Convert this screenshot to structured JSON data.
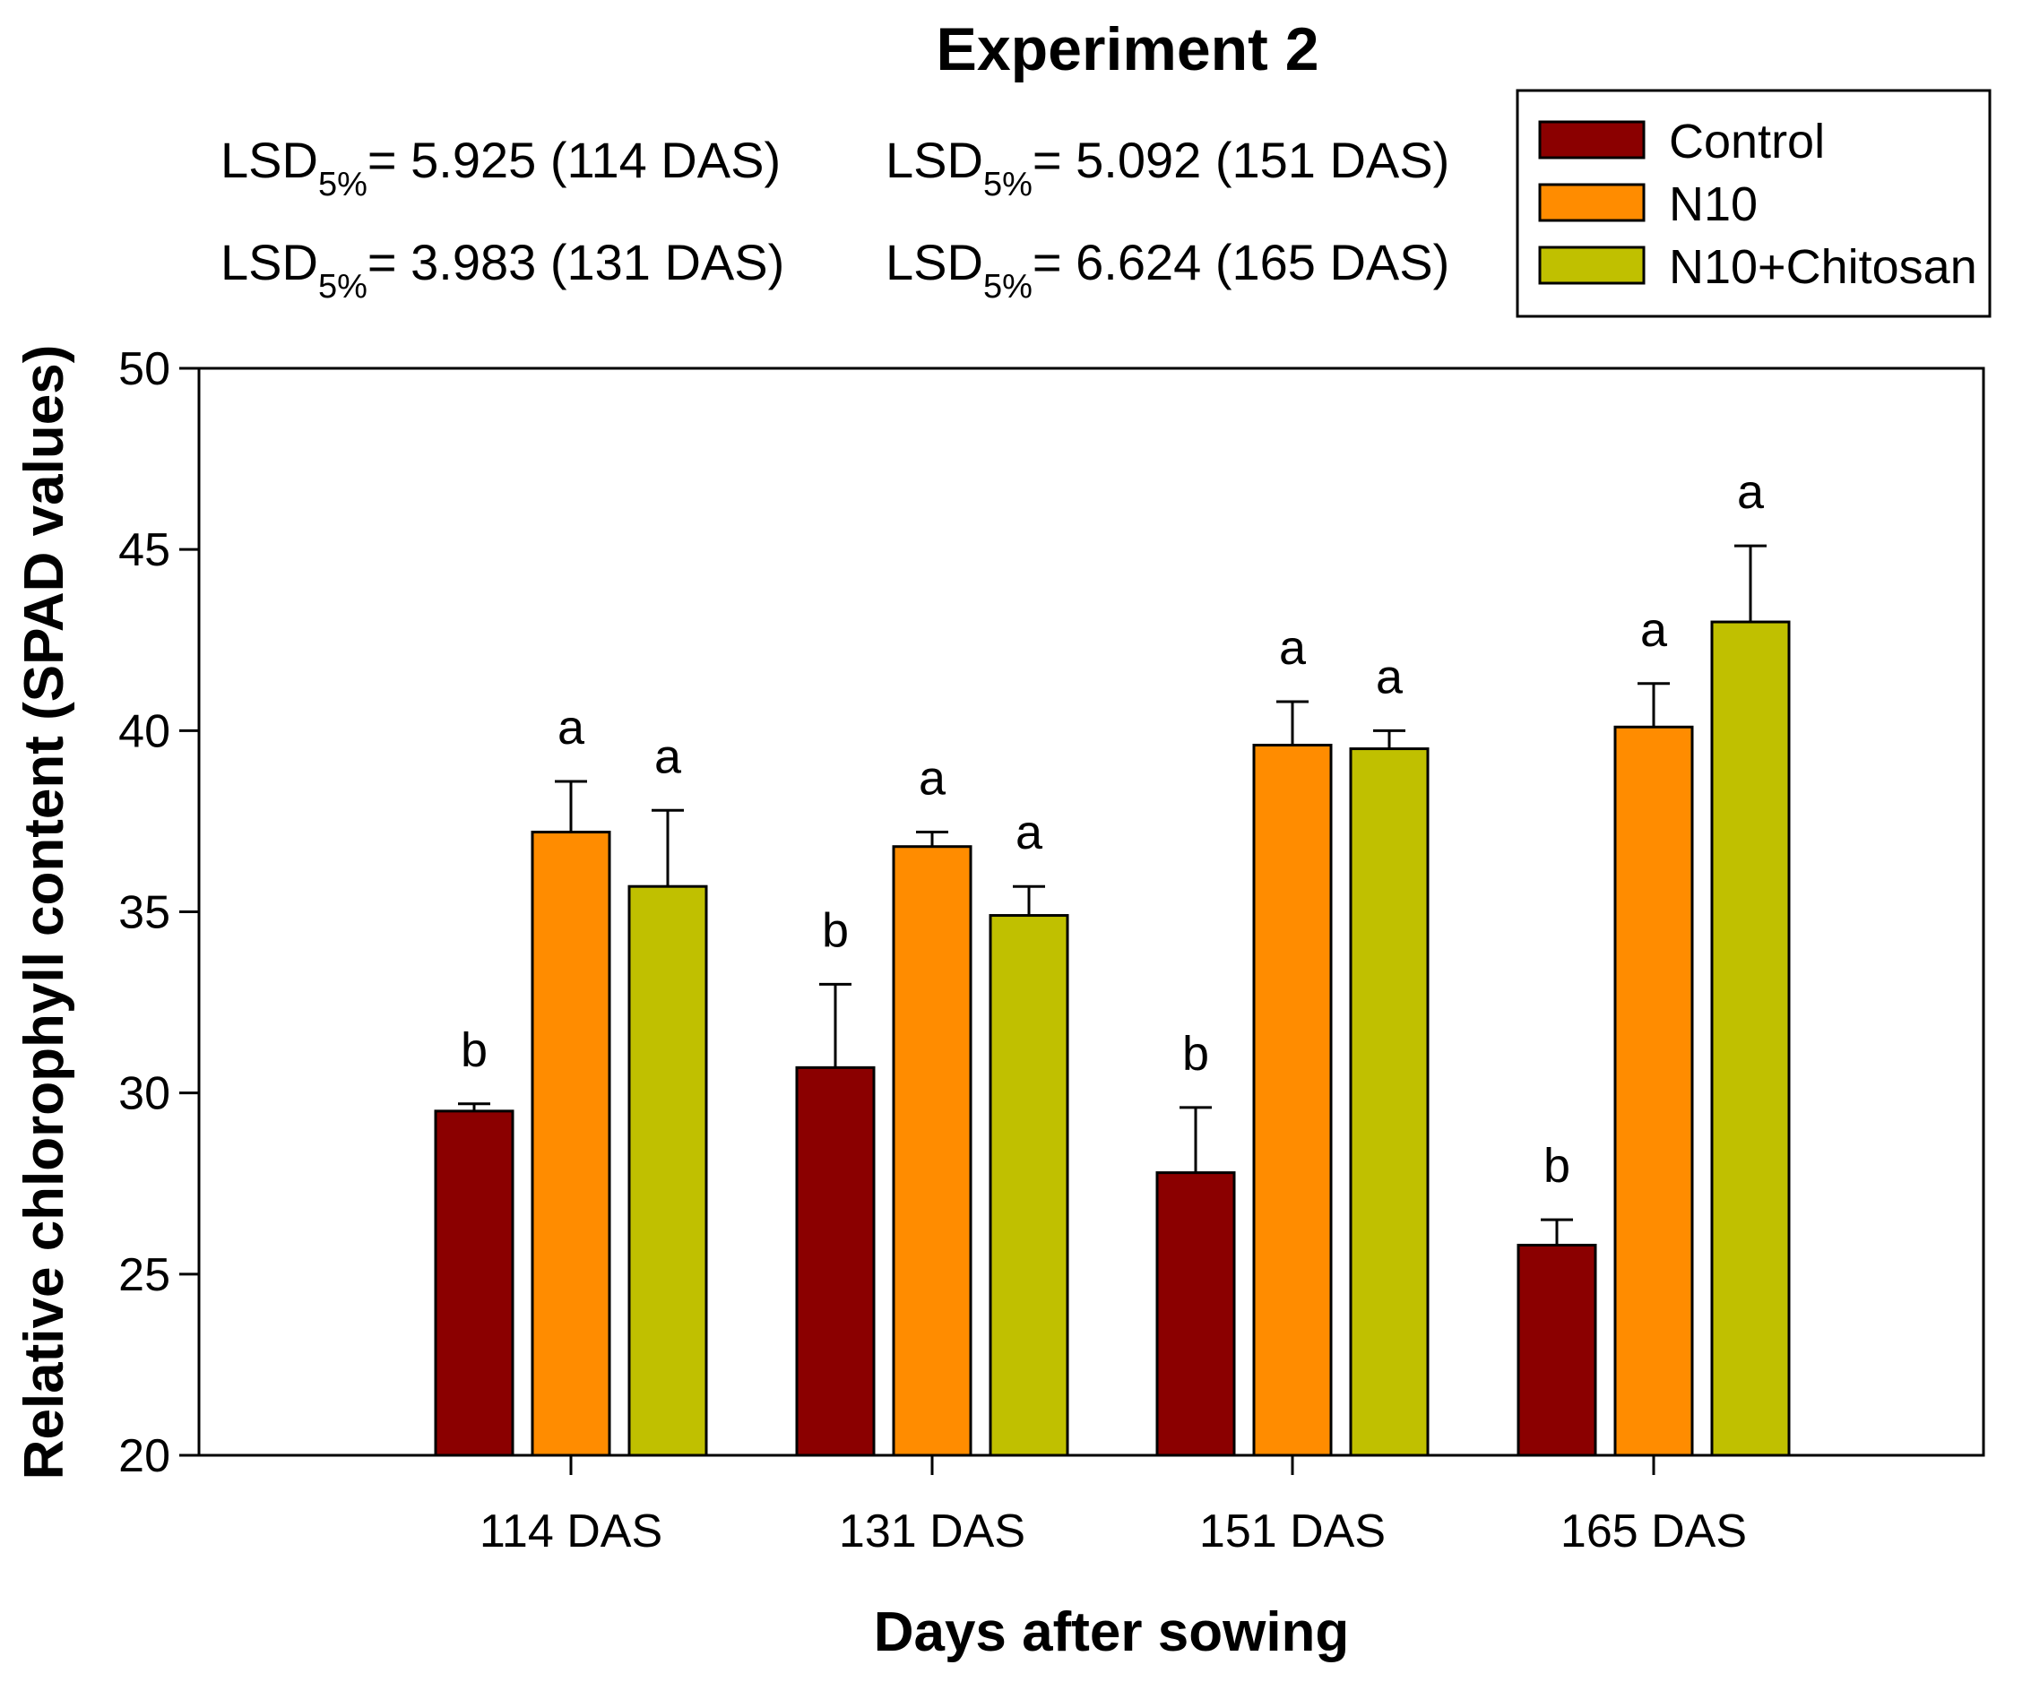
{
  "chart_data": {
    "type": "bar",
    "title": "Experiment 2",
    "xlabel": "Days after sowing",
    "ylabel": "Relative chlorophyll content (SPAD values)",
    "ylim": [
      20,
      50
    ],
    "yticks": [
      20,
      25,
      30,
      35,
      40,
      45,
      50
    ],
    "categories": [
      "114 DAS",
      "131 DAS",
      "151 DAS",
      "165 DAS"
    ],
    "series": [
      {
        "name": "Control",
        "color": "#8B0000",
        "values": [
          29.5,
          30.7,
          27.8,
          25.8
        ],
        "errors": [
          0.2,
          2.3,
          1.8,
          0.7
        ],
        "letters": [
          "b",
          "b",
          "b",
          "b"
        ]
      },
      {
        "name": "N10",
        "color": "#FF8C00",
        "values": [
          37.2,
          36.8,
          39.6,
          40.1
        ],
        "errors": [
          1.4,
          0.4,
          1.2,
          1.2
        ],
        "letters": [
          "a",
          "a",
          "a",
          "a"
        ]
      },
      {
        "name": "N10+Chitosan",
        "color": "#C0C000",
        "values": [
          35.7,
          34.9,
          39.5,
          43.0
        ],
        "errors": [
          2.1,
          0.8,
          0.5,
          2.1
        ],
        "letters": [
          "a",
          "a",
          "a",
          "a"
        ]
      }
    ],
    "annotations": {
      "lsd_prefix": "LSD",
      "lsd_subscript": "5%",
      "lsd_items": [
        "= 5.925 (114 DAS)",
        "= 5.092 (151 DAS)",
        "= 3.983 (131 DAS)",
        "= 6.624 (165 DAS)"
      ]
    },
    "legend": "top-right",
    "grid": false
  }
}
